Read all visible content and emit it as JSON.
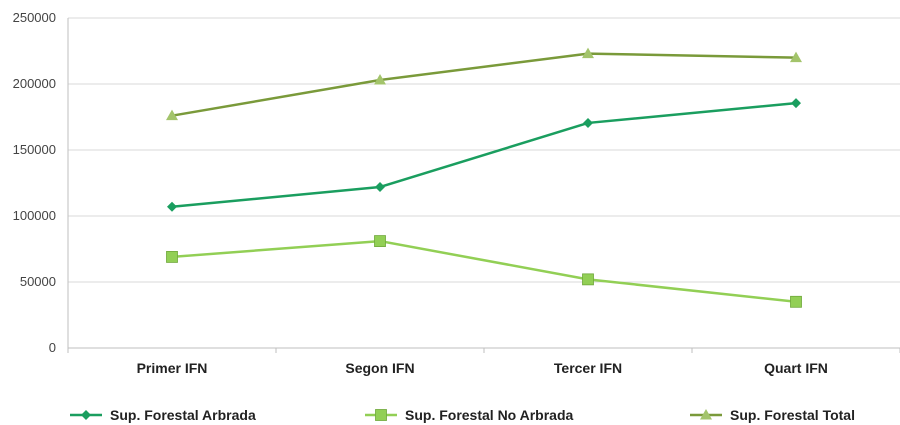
{
  "chart_data": {
    "type": "line",
    "categories": [
      "Primer IFN",
      "Segon IFN",
      "Tercer IFN",
      "Quart IFN"
    ],
    "series": [
      {
        "name": "Sup. Forestal Arbrada",
        "values": [
          107000,
          122000,
          170500,
          185500
        ],
        "color": "#1a9e5f",
        "marker": "diamond"
      },
      {
        "name": "Sup. Forestal No Arbrada",
        "values": [
          69000,
          81000,
          52000,
          35000
        ],
        "color": "#92cf55",
        "marker": "square"
      },
      {
        "name": "Sup. Forestal Total",
        "values": [
          176000,
          203000,
          223000,
          220000
        ],
        "color": "#7a9a3a",
        "marker": "triangle"
      }
    ],
    "yticks": [
      "0",
      "50000",
      "100000",
      "150000",
      "200000",
      "250000"
    ],
    "ylim": [
      0,
      250000
    ],
    "grid": true,
    "legend_position": "bottom",
    "title": "",
    "xlabel": "",
    "ylabel": ""
  }
}
